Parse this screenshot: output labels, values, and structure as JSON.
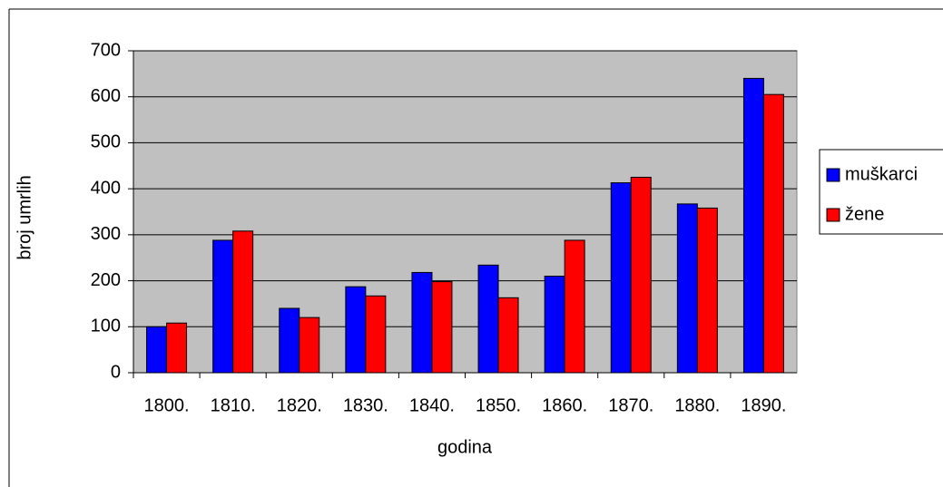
{
  "chart_data": {
    "type": "bar",
    "x_label": "godina",
    "y_label": "broj umrlih",
    "categories": [
      "1800.",
      "1810.",
      "1820.",
      "1830.",
      "1840.",
      "1850.",
      "1860.",
      "1870.",
      "1880.",
      "1890."
    ],
    "series": [
      {
        "name": "muškarci",
        "color": "#0000ff",
        "values": [
          100,
          288,
          140,
          187,
          218,
          234,
          210,
          413,
          367,
          640
        ]
      },
      {
        "name": "žene",
        "color": "#ff0000",
        "values": [
          108,
          308,
          120,
          167,
          198,
          163,
          288,
          425,
          358,
          605
        ]
      }
    ],
    "ylim": [
      0,
      700
    ],
    "yticks": [
      0,
      100,
      200,
      300,
      400,
      500,
      600,
      700
    ],
    "grid": true
  }
}
